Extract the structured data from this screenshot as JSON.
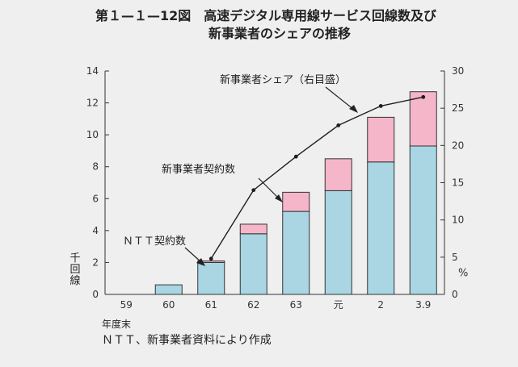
{
  "title": {
    "line1": "第１—１—12図　高速デジタル専用線サービス回線数及び",
    "line2": "新事業者のシェアの推移"
  },
  "source": "ＮＴＴ、新事業者資料により作成",
  "x_axis_label": "年度末",
  "y_left_unit": "千回線",
  "y_right_unit": "%",
  "annotations": {
    "ntt": "ＮＴＴ契約数",
    "new": "新事業者契約数",
    "share": "新事業者シェア（右目盛）"
  },
  "colors": {
    "ntt": "#a9d6e2",
    "new": "#f5b6ca",
    "line": "#1f1f1f",
    "background": "#efefef"
  },
  "chart_data": {
    "type": "bar",
    "stacked": true,
    "categories": [
      "59",
      "60",
      "61",
      "62",
      "63",
      "元",
      "2",
      "3.9"
    ],
    "series": [
      {
        "name": "ＮＴＴ契約数",
        "values": [
          0,
          0.6,
          2.0,
          3.8,
          5.2,
          6.5,
          8.3,
          9.3
        ]
      },
      {
        "name": "新事業者契約数",
        "values": [
          0,
          0,
          0.1,
          0.6,
          1.2,
          2.0,
          2.8,
          3.4
        ]
      }
    ],
    "line_series": {
      "name": "新事業者シェア（右目盛）",
      "axis": "right",
      "values": [
        null,
        null,
        4.8,
        14.0,
        18.5,
        22.7,
        25.3,
        26.5
      ]
    },
    "ylim": [
      0,
      14
    ],
    "yticks": [
      0,
      2,
      4,
      6,
      8,
      10,
      12,
      14
    ],
    "y2lim": [
      0,
      30
    ],
    "y2ticks": [
      0,
      5,
      10,
      15,
      20,
      25,
      30
    ],
    "grid": false
  }
}
